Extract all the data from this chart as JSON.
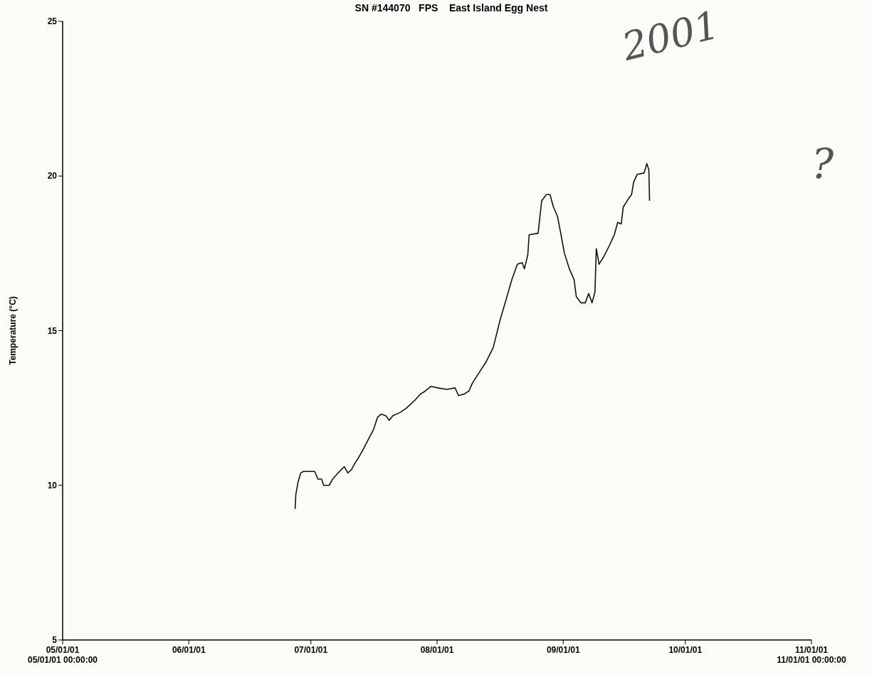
{
  "chart_data": {
    "type": "line",
    "title": "SN #144070   FPS    East Island Egg Nest",
    "ylabel": "Temperature  (°C)",
    "annotations": [
      "2001",
      "?"
    ],
    "xlim": [
      "2001-05-01",
      "2001-11-01"
    ],
    "xticks": [
      {
        "value": "2001-05-01",
        "label": "05/01/01\n05/01/01 00:00:00"
      },
      {
        "value": "2001-06-01",
        "label": "06/01/01"
      },
      {
        "value": "2001-07-01",
        "label": "07/01/01"
      },
      {
        "value": "2001-08-01",
        "label": "08/01/01"
      },
      {
        "value": "2001-09-01",
        "label": "09/01/01"
      },
      {
        "value": "2001-10-01",
        "label": "10/01/01"
      },
      {
        "value": "2001-11-01",
        "label": "11/01/01\n11/01/01 00:00:00"
      }
    ],
    "ylim": [
      5,
      25
    ],
    "yticks": [
      5,
      10,
      15,
      20,
      25
    ],
    "grid": false,
    "marker": "none",
    "line_style": "solid",
    "series": [
      {
        "color": "#111111",
        "x": [
          "2001-06-27T03:00",
          "2001-06-27T07:00",
          "2001-06-27T20:00",
          "2001-06-28T12:00",
          "2001-06-29T04:00",
          "2001-07-01T22:00",
          "2001-07-02T18:00",
          "2001-07-03T15:00",
          "2001-07-04T03:00",
          "2001-07-05T12:00",
          "2001-07-06T08:00",
          "2001-07-08T09:00",
          "2001-07-09T05:00",
          "2001-07-10T02:00",
          "2001-07-10T22:00",
          "2001-07-11T18:00",
          "2001-07-12T23:00",
          "2001-07-14T00:00",
          "2001-07-15T04:00",
          "2001-07-16T09:00",
          "2001-07-17T09:00",
          "2001-07-18T06:00",
          "2001-07-19T10:00",
          "2001-07-20T06:00",
          "2001-07-21T03:00",
          "2001-07-22T20:00",
          "2001-07-24T12:00",
          "2001-07-26T13:00",
          "2001-07-27T22:00",
          "2001-07-29T03:00",
          "2001-07-30T12:00",
          "2001-08-01T04:00",
          "2001-08-03T09:00",
          "2001-08-05T10:00",
          "2001-08-06T07:00",
          "2001-08-07T15:00",
          "2001-08-08T20:00",
          "2001-08-09T16:00",
          "2001-08-11T09:00",
          "2001-08-13T02:00",
          "2001-08-14T19:00",
          "2001-08-16T12:00",
          "2001-08-18T04:00",
          "2001-08-19T09:00",
          "2001-08-20T18:00",
          "2001-08-21T22:00",
          "2001-08-22T11:00",
          "2001-08-23T07:00",
          "2001-08-23T15:00",
          "2001-08-25T20:00",
          "2001-08-26T17:00",
          "2001-08-27T21:00",
          "2001-08-28T18:00",
          "2001-08-29T14:00",
          "2001-08-30T14:00",
          "2001-08-31T11:00",
          "2001-09-01T07:00",
          "2001-09-02T12:00",
          "2001-09-03T16:00",
          "2001-09-04T05:00",
          "2001-09-05T09:00",
          "2001-09-06T10:00",
          "2001-09-07T06:00",
          "2001-09-08T02:00",
          "2001-09-08T19:00",
          "2001-09-09T03:00",
          "2001-09-09T19:00",
          "2001-09-11T00:00",
          "2001-09-12T08:00",
          "2001-09-13T13:00",
          "2001-09-14T09:00",
          "2001-09-15T06:00",
          "2001-09-15T18:00",
          "2001-09-16T23:00",
          "2001-09-17T19:00",
          "2001-09-18T07:00",
          "2001-09-19T04:00",
          "2001-09-20T21:00",
          "2001-09-21T13:00",
          "2001-09-22T01:00",
          "2001-09-22T05:00"
        ],
        "values": [
          9.24,
          9.7,
          10.1,
          10.4,
          10.45,
          10.45,
          10.2,
          10.2,
          10.0,
          10.0,
          10.2,
          10.5,
          10.6,
          10.4,
          10.5,
          10.7,
          10.95,
          11.2,
          11.5,
          11.8,
          12.2,
          12.3,
          12.25,
          12.1,
          12.25,
          12.35,
          12.5,
          12.75,
          12.95,
          13.05,
          13.2,
          13.15,
          13.1,
          13.15,
          12.9,
          12.95,
          13.05,
          13.3,
          13.65,
          14.0,
          14.45,
          15.35,
          16.1,
          16.65,
          17.15,
          17.2,
          17.0,
          17.45,
          18.1,
          18.15,
          19.2,
          19.4,
          19.4,
          19.0,
          18.7,
          18.1,
          17.5,
          17.0,
          16.65,
          16.1,
          15.9,
          15.9,
          16.2,
          15.9,
          16.25,
          17.65,
          17.15,
          17.4,
          17.75,
          18.1,
          18.5,
          18.45,
          19.0,
          19.25,
          19.4,
          19.8,
          20.05,
          20.1,
          20.4,
          20.2,
          19.2
        ]
      }
    ]
  }
}
